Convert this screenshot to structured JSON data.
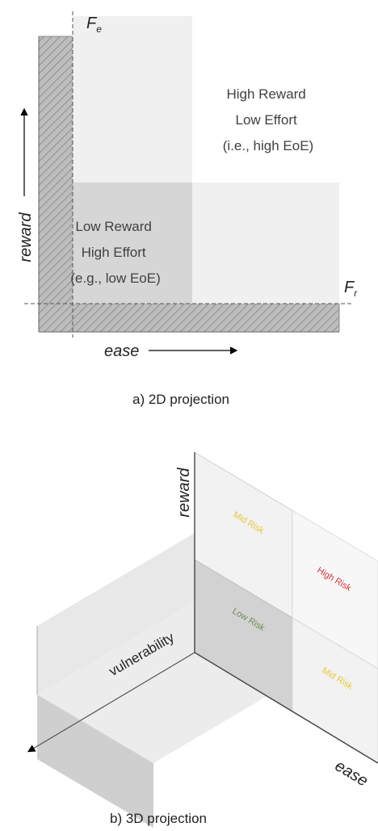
{
  "panel_a": {
    "fe_label_main": "F",
    "fe_label_sub": "e",
    "fr_label_main": "F",
    "fr_label_sub": "r",
    "reward_axis": "reward",
    "ease_axis": "ease",
    "high_region": [
      "High Reward",
      "Low Effort",
      "(i.e., high EoE)"
    ],
    "low_region": [
      "Low Reward",
      "High Effort",
      "(e.g., low EoE)"
    ],
    "caption": "a) 2D projection"
  },
  "panel_b": {
    "reward_axis": "reward",
    "vulnerability_axis": "vulnerability",
    "ease_axis": "ease",
    "mid_risk_top": "Mid Risk",
    "high_risk": "High Risk",
    "low_risk": "Low Risk",
    "mid_risk_bottom": "Mid Risk",
    "caption": "b) 3D projection"
  },
  "colors": {
    "low_risk": "#6e8a55",
    "mid_risk": "#e8c63a",
    "high_risk": "#d9323a"
  }
}
